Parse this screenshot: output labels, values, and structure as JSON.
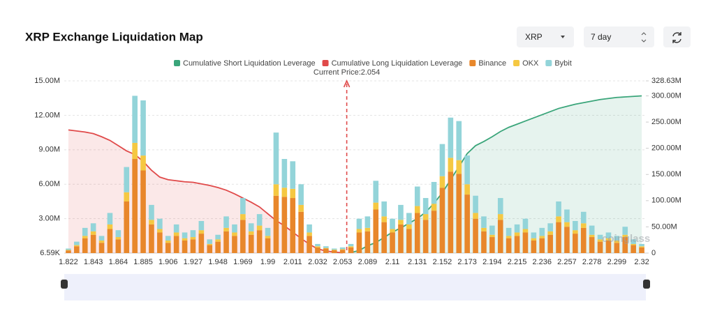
{
  "controls": {
    "symbol": "XRP",
    "period": "7 day"
  },
  "chart_data": {
    "type": "bar",
    "title": "XRP Exchange Liquidation Map",
    "annotation": "Current Price:2.054",
    "watermark": "coinglass",
    "grid": true,
    "categories": [
      "1.822",
      null,
      null,
      "1.843",
      null,
      null,
      "1.864",
      null,
      null,
      "1.885",
      null,
      null,
      "1.906",
      null,
      null,
      "1.927",
      null,
      null,
      "1.948",
      null,
      null,
      "1.969",
      null,
      null,
      "1.99",
      null,
      null,
      "2.011",
      null,
      null,
      "2.032",
      null,
      null,
      "2.053",
      null,
      null,
      "2.089",
      null,
      null,
      "2.11",
      null,
      null,
      "2.131",
      null,
      null,
      "2.152",
      null,
      null,
      "2.173",
      null,
      null,
      "2.194",
      null,
      null,
      "2.215",
      null,
      null,
      "2.236",
      null,
      null,
      "2.257",
      null,
      null,
      "2.278",
      null,
      null,
      "2.299",
      null,
      null,
      "2.32"
    ],
    "ylim": [
      0.00659,
      15
    ],
    "yticks": [
      {
        "value": 0.00659,
        "label": "6.59K"
      },
      {
        "value": 3,
        "label": "3.00M"
      },
      {
        "value": 6,
        "label": "6.00M"
      },
      {
        "value": 9,
        "label": "9.00M"
      },
      {
        "value": 12,
        "label": "12.00M"
      },
      {
        "value": 15,
        "label": "15.00M"
      }
    ],
    "y2lim": [
      0,
      328.63
    ],
    "y2ticks": [
      0,
      {
        "value": 50,
        "label": "50.00M"
      },
      {
        "value": 100,
        "label": "100.00M"
      },
      {
        "value": 150,
        "label": "150.00M"
      },
      {
        "value": 200,
        "label": "200.00M"
      },
      {
        "value": 250,
        "label": "250.00M"
      },
      {
        "value": 300,
        "label": "300.00M"
      },
      {
        "value": 328.63,
        "label": "328.63M"
      }
    ],
    "series": [
      {
        "name": "Cumulative Short Liquidation Leverage",
        "type": "line",
        "axis": "y2",
        "color": "#3aa57a",
        "values": [
          null,
          null,
          null,
          null,
          null,
          null,
          null,
          null,
          null,
          null,
          null,
          null,
          null,
          null,
          null,
          null,
          null,
          null,
          null,
          null,
          null,
          null,
          null,
          null,
          null,
          null,
          null,
          null,
          null,
          null,
          null,
          null,
          null,
          null,
          1,
          5,
          14,
          20,
          30,
          40,
          48,
          57,
          66,
          78,
          95,
          115,
          140,
          165,
          190,
          205,
          213,
          222,
          232,
          240,
          246,
          252,
          258,
          264,
          270,
          276,
          280,
          284,
          287,
          290,
          293,
          295,
          297,
          298,
          299,
          300
        ]
      },
      {
        "name": "Cumulative Long Liquidation Leverage",
        "type": "line",
        "axis": "y2",
        "color": "#e04a4a",
        "values": [
          235,
          233,
          231,
          228,
          222,
          215,
          205,
          195,
          188,
          175,
          158,
          145,
          140,
          138,
          136,
          135,
          132,
          129,
          125,
          120,
          113,
          105,
          97,
          88,
          75,
          62,
          52,
          40,
          28,
          17,
          8,
          4,
          2,
          0.5,
          null,
          null,
          null,
          null,
          null,
          null,
          null,
          null,
          null,
          null,
          null,
          null,
          null,
          null,
          null,
          null,
          null,
          null,
          null,
          null,
          null,
          null,
          null,
          null,
          null,
          null,
          null,
          null,
          null,
          null,
          null,
          null,
          null,
          null,
          null,
          null
        ]
      },
      {
        "name": "Binance",
        "type": "bar",
        "color": "#e8872b",
        "values": [
          0.24,
          0.6,
          1.3,
          1.6,
          0.9,
          2.1,
          1.2,
          4.5,
          8.2,
          7.2,
          2.5,
          1.8,
          0.9,
          1.5,
          1.1,
          1.2,
          1.7,
          0.7,
          1.0,
          1.9,
          1.5,
          2.9,
          1.6,
          2.0,
          1.3,
          5.0,
          4.9,
          4.8,
          3.6,
          1.5,
          0.5,
          0.4,
          0.25,
          0.3,
          0.5,
          1.8,
          1.9,
          3.8,
          2.7,
          1.8,
          2.5,
          2.1,
          3.5,
          2.9,
          3.7,
          5.7,
          7.1,
          6.9,
          5.1,
          3.0,
          1.9,
          1.4,
          2.9,
          1.3,
          1.5,
          1.8,
          1.1,
          1.3,
          1.6,
          2.7,
          2.3,
          1.7,
          2.2,
          1.4,
          1.0,
          1.1,
          0.9,
          1.4,
          0.7,
          0.5
        ]
      },
      {
        "name": "OKX",
        "type": "bar",
        "color": "#f5c842",
        "values": [
          0.04,
          0.1,
          0.2,
          0.3,
          0.2,
          0.4,
          0.2,
          0.8,
          1.4,
          1.3,
          0.4,
          0.3,
          0.2,
          0.3,
          0.2,
          0.2,
          0.3,
          0.1,
          0.2,
          0.3,
          0.3,
          0.5,
          0.3,
          0.4,
          0.2,
          1.0,
          0.8,
          0.8,
          0.6,
          0.3,
          0.1,
          0.05,
          0.05,
          0.05,
          0.1,
          0.3,
          0.3,
          0.6,
          0.5,
          0.3,
          0.4,
          0.4,
          0.6,
          0.5,
          0.6,
          1.0,
          1.2,
          1.2,
          0.9,
          0.5,
          0.3,
          0.2,
          0.5,
          0.2,
          0.3,
          0.3,
          0.2,
          0.2,
          0.3,
          0.5,
          0.4,
          0.3,
          0.4,
          0.2,
          0.2,
          0.2,
          0.2,
          0.2,
          0.1,
          0.1
        ]
      },
      {
        "name": "Bybit",
        "type": "bar",
        "color": "#93d4d9",
        "values": [
          0.12,
          0.3,
          0.7,
          0.7,
          0.4,
          1.0,
          0.6,
          2.2,
          4.1,
          4.8,
          1.3,
          0.9,
          0.4,
          0.7,
          0.5,
          0.6,
          0.8,
          0.4,
          0.4,
          1.0,
          0.7,
          1.4,
          0.7,
          1.0,
          0.7,
          4.5,
          2.5,
          2.4,
          1.8,
          0.7,
          0.2,
          0.15,
          0.1,
          0.15,
          0.2,
          0.9,
          1.0,
          1.9,
          1.3,
          0.9,
          1.3,
          1.0,
          1.7,
          1.4,
          1.9,
          2.8,
          3.5,
          3.4,
          2.5,
          1.5,
          1.0,
          0.8,
          1.4,
          0.7,
          0.7,
          0.9,
          0.5,
          0.7,
          0.7,
          1.3,
          1.1,
          0.8,
          1.0,
          0.8,
          0.4,
          0.5,
          0.4,
          0.7,
          0.4,
          0.2
        ]
      }
    ]
  }
}
